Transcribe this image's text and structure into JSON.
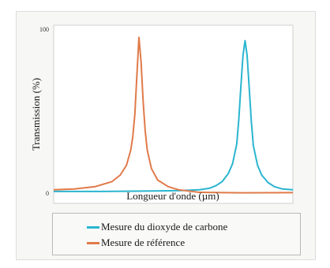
{
  "chart_data": {
    "type": "line",
    "title": "",
    "xlabel": "Longueur d'onde (µm)",
    "ylabel": "Transmission (%)",
    "ylim": [
      0,
      100
    ],
    "yticks": [
      {
        "value": 100,
        "label": "100"
      },
      {
        "value": 0,
        "label": "0"
      }
    ],
    "grid": false,
    "legend_placement": "bottom",
    "series": [
      {
        "name": "Mesure du dioxyde de carbone",
        "color": "#2ab5d0",
        "points": [
          [
            0,
            1
          ],
          [
            20,
            1
          ],
          [
            40,
            1.2
          ],
          [
            60,
            1.5
          ],
          [
            70,
            2
          ],
          [
            75,
            3
          ],
          [
            78,
            4.5
          ],
          [
            81,
            7
          ],
          [
            84,
            12
          ],
          [
            86,
            18
          ],
          [
            88,
            30
          ],
          [
            89,
            45
          ],
          [
            90,
            65
          ],
          [
            91,
            84
          ],
          [
            92,
            93
          ],
          [
            93,
            84
          ],
          [
            94,
            64
          ],
          [
            95,
            44
          ],
          [
            96,
            29
          ],
          [
            98,
            17
          ],
          [
            100,
            11
          ],
          [
            103,
            6.5
          ],
          [
            106,
            4
          ],
          [
            110,
            2.5
          ],
          [
            115,
            2
          ]
        ]
      },
      {
        "name": "Mesure de référence",
        "color": "#e07a4a",
        "points": [
          [
            0,
            2
          ],
          [
            10,
            2.5
          ],
          [
            20,
            4
          ],
          [
            28,
            7
          ],
          [
            32,
            11
          ],
          [
            35,
            17
          ],
          [
            37,
            26
          ],
          [
            38,
            34
          ],
          [
            39,
            48
          ],
          [
            40,
            72
          ],
          [
            41,
            95
          ],
          [
            42,
            80
          ],
          [
            43,
            56
          ],
          [
            44,
            38
          ],
          [
            45,
            26
          ],
          [
            47,
            15
          ],
          [
            50,
            8
          ],
          [
            55,
            4
          ],
          [
            60,
            2
          ],
          [
            70,
            0.5
          ],
          [
            90,
            0.2
          ],
          [
            115,
            0.3
          ]
        ]
      }
    ]
  }
}
